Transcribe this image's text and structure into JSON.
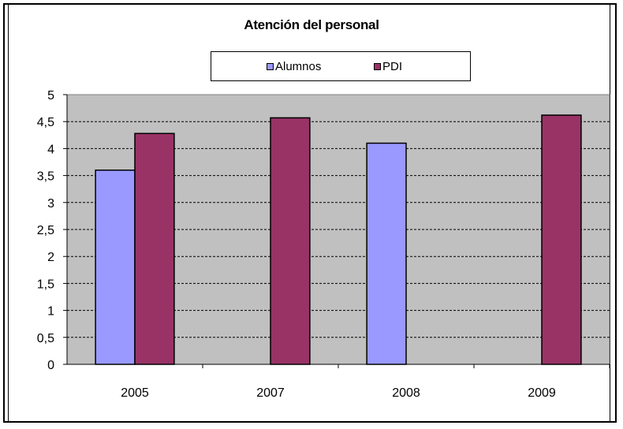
{
  "chart_data": {
    "type": "bar",
    "title": "Atención del personal",
    "categories": [
      "2005",
      "2007",
      "2008",
      "2009"
    ],
    "series": [
      {
        "name": "Alumnos",
        "color": "#9999ff",
        "values": [
          3.6,
          null,
          4.1,
          null
        ]
      },
      {
        "name": "PDI",
        "color": "#993366",
        "values": [
          4.28,
          4.57,
          null,
          4.62
        ]
      }
    ],
    "ylim": [
      0,
      5
    ],
    "yticks": [
      "0",
      "0,5",
      "1",
      "1,5",
      "2",
      "2,5",
      "3",
      "3,5",
      "4",
      "4,5",
      "5"
    ],
    "grid": true,
    "legend_position": "top",
    "plot_background": "#c0c0c0"
  }
}
